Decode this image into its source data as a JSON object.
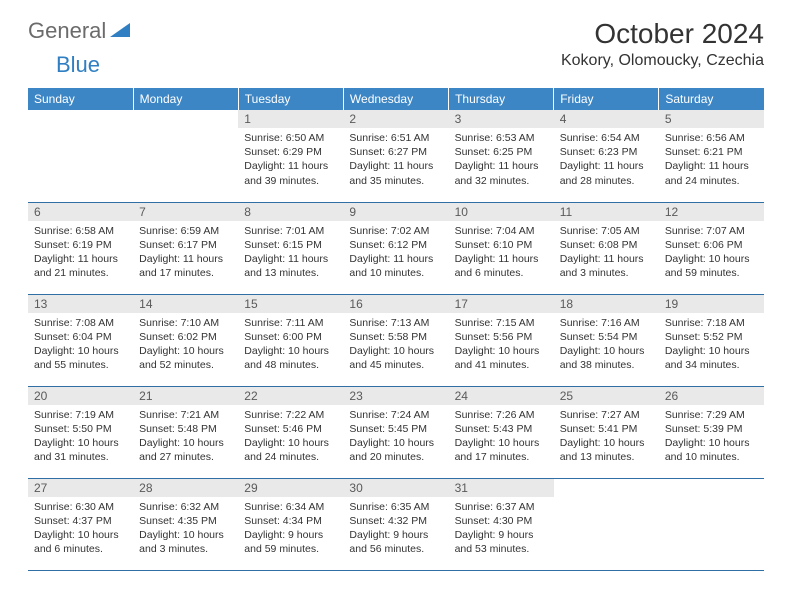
{
  "brand": {
    "general": "General",
    "blue": "Blue"
  },
  "header": {
    "month_title": "October 2024",
    "location": "Kokory, Olomoucky, Czechia"
  },
  "calendar": {
    "day_headers": [
      "Sunday",
      "Monday",
      "Tuesday",
      "Wednesday",
      "Thursday",
      "Friday",
      "Saturday"
    ],
    "header_bg": "#3d86c6",
    "header_fg": "#ffffff",
    "daynum_bg": "#e9e9e9",
    "border_color": "#2f6fa6",
    "weeks": [
      [
        null,
        null,
        {
          "n": "1",
          "sunrise": "6:50 AM",
          "sunset": "6:29 PM",
          "daylight": "11 hours and 39 minutes."
        },
        {
          "n": "2",
          "sunrise": "6:51 AM",
          "sunset": "6:27 PM",
          "daylight": "11 hours and 35 minutes."
        },
        {
          "n": "3",
          "sunrise": "6:53 AM",
          "sunset": "6:25 PM",
          "daylight": "11 hours and 32 minutes."
        },
        {
          "n": "4",
          "sunrise": "6:54 AM",
          "sunset": "6:23 PM",
          "daylight": "11 hours and 28 minutes."
        },
        {
          "n": "5",
          "sunrise": "6:56 AM",
          "sunset": "6:21 PM",
          "daylight": "11 hours and 24 minutes."
        }
      ],
      [
        {
          "n": "6",
          "sunrise": "6:58 AM",
          "sunset": "6:19 PM",
          "daylight": "11 hours and 21 minutes."
        },
        {
          "n": "7",
          "sunrise": "6:59 AM",
          "sunset": "6:17 PM",
          "daylight": "11 hours and 17 minutes."
        },
        {
          "n": "8",
          "sunrise": "7:01 AM",
          "sunset": "6:15 PM",
          "daylight": "11 hours and 13 minutes."
        },
        {
          "n": "9",
          "sunrise": "7:02 AM",
          "sunset": "6:12 PM",
          "daylight": "11 hours and 10 minutes."
        },
        {
          "n": "10",
          "sunrise": "7:04 AM",
          "sunset": "6:10 PM",
          "daylight": "11 hours and 6 minutes."
        },
        {
          "n": "11",
          "sunrise": "7:05 AM",
          "sunset": "6:08 PM",
          "daylight": "11 hours and 3 minutes."
        },
        {
          "n": "12",
          "sunrise": "7:07 AM",
          "sunset": "6:06 PM",
          "daylight": "10 hours and 59 minutes."
        }
      ],
      [
        {
          "n": "13",
          "sunrise": "7:08 AM",
          "sunset": "6:04 PM",
          "daylight": "10 hours and 55 minutes."
        },
        {
          "n": "14",
          "sunrise": "7:10 AM",
          "sunset": "6:02 PM",
          "daylight": "10 hours and 52 minutes."
        },
        {
          "n": "15",
          "sunrise": "7:11 AM",
          "sunset": "6:00 PM",
          "daylight": "10 hours and 48 minutes."
        },
        {
          "n": "16",
          "sunrise": "7:13 AM",
          "sunset": "5:58 PM",
          "daylight": "10 hours and 45 minutes."
        },
        {
          "n": "17",
          "sunrise": "7:15 AM",
          "sunset": "5:56 PM",
          "daylight": "10 hours and 41 minutes."
        },
        {
          "n": "18",
          "sunrise": "7:16 AM",
          "sunset": "5:54 PM",
          "daylight": "10 hours and 38 minutes."
        },
        {
          "n": "19",
          "sunrise": "7:18 AM",
          "sunset": "5:52 PM",
          "daylight": "10 hours and 34 minutes."
        }
      ],
      [
        {
          "n": "20",
          "sunrise": "7:19 AM",
          "sunset": "5:50 PM",
          "daylight": "10 hours and 31 minutes."
        },
        {
          "n": "21",
          "sunrise": "7:21 AM",
          "sunset": "5:48 PM",
          "daylight": "10 hours and 27 minutes."
        },
        {
          "n": "22",
          "sunrise": "7:22 AM",
          "sunset": "5:46 PM",
          "daylight": "10 hours and 24 minutes."
        },
        {
          "n": "23",
          "sunrise": "7:24 AM",
          "sunset": "5:45 PM",
          "daylight": "10 hours and 20 minutes."
        },
        {
          "n": "24",
          "sunrise": "7:26 AM",
          "sunset": "5:43 PM",
          "daylight": "10 hours and 17 minutes."
        },
        {
          "n": "25",
          "sunrise": "7:27 AM",
          "sunset": "5:41 PM",
          "daylight": "10 hours and 13 minutes."
        },
        {
          "n": "26",
          "sunrise": "7:29 AM",
          "sunset": "5:39 PM",
          "daylight": "10 hours and 10 minutes."
        }
      ],
      [
        {
          "n": "27",
          "sunrise": "6:30 AM",
          "sunset": "4:37 PM",
          "daylight": "10 hours and 6 minutes."
        },
        {
          "n": "28",
          "sunrise": "6:32 AM",
          "sunset": "4:35 PM",
          "daylight": "10 hours and 3 minutes."
        },
        {
          "n": "29",
          "sunrise": "6:34 AM",
          "sunset": "4:34 PM",
          "daylight": "9 hours and 59 minutes."
        },
        {
          "n": "30",
          "sunrise": "6:35 AM",
          "sunset": "4:32 PM",
          "daylight": "9 hours and 56 minutes."
        },
        {
          "n": "31",
          "sunrise": "6:37 AM",
          "sunset": "4:30 PM",
          "daylight": "9 hours and 53 minutes."
        },
        null,
        null
      ]
    ],
    "labels": {
      "sunrise": "Sunrise:",
      "sunset": "Sunset:",
      "daylight": "Daylight:"
    }
  }
}
